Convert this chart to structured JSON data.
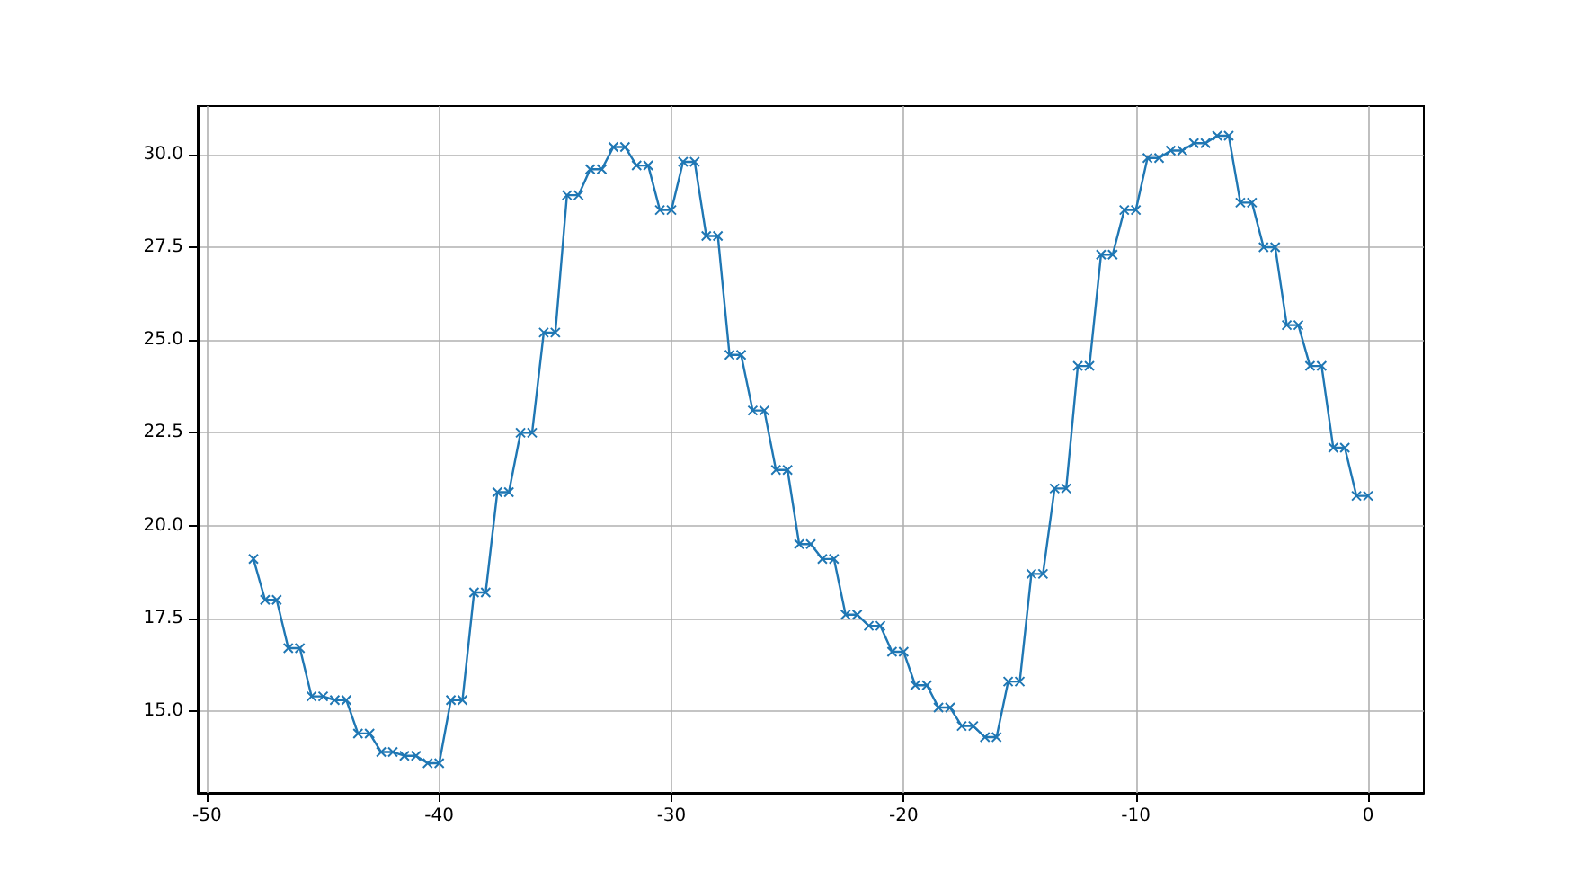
{
  "chart_data": {
    "type": "line",
    "marker": "cross",
    "grid": true,
    "x": [
      -48,
      -47.5,
      -47,
      -46.5,
      -46,
      -45.5,
      -45,
      -44.5,
      -44,
      -43.5,
      -43,
      -42.5,
      -42,
      -41.5,
      -41,
      -40.5,
      -40,
      -39.5,
      -39,
      -38.5,
      -38,
      -37.5,
      -37,
      -36.5,
      -36,
      -35.5,
      -35,
      -34.5,
      -34,
      -33.5,
      -33,
      -32.5,
      -32,
      -31.5,
      -31,
      -30.5,
      -30,
      -29.5,
      -29,
      -28.5,
      -28,
      -27.5,
      -27,
      -26.5,
      -26,
      -25.5,
      -25,
      -24.5,
      -24,
      -23.5,
      -23,
      -22.5,
      -22,
      -21.5,
      -21,
      -20.5,
      -20,
      -19.5,
      -19,
      -18.5,
      -18,
      -17.5,
      -17,
      -16.5,
      -16,
      -15.5,
      -15,
      -14.5,
      -14,
      -13.5,
      -13,
      -12.5,
      -12,
      -11.5,
      -11,
      -10.5,
      -10,
      -9.5,
      -9,
      -8.5,
      -8,
      -7.5,
      -7,
      -6.5,
      -6,
      -5.5,
      -5,
      -4.5,
      -4,
      -3.5,
      -3,
      -2.5,
      -2,
      -1.5,
      -1,
      -0.5,
      0
    ],
    "series": [
      {
        "color": "#1f77b4",
        "values": [
          19.1,
          18.0,
          18.0,
          16.7,
          16.7,
          15.4,
          15.4,
          15.3,
          15.3,
          14.4,
          14.4,
          13.9,
          13.9,
          13.8,
          13.8,
          13.6,
          13.6,
          15.3,
          15.3,
          18.2,
          18.2,
          20.9,
          20.9,
          22.5,
          22.5,
          25.2,
          25.2,
          28.9,
          28.9,
          29.6,
          29.6,
          30.2,
          30.2,
          29.7,
          29.7,
          28.5,
          28.5,
          29.8,
          29.8,
          27.8,
          27.8,
          24.6,
          24.6,
          23.1,
          23.1,
          21.5,
          21.5,
          19.5,
          19.5,
          19.1,
          19.1,
          17.6,
          17.6,
          17.3,
          17.3,
          16.6,
          16.6,
          15.7,
          15.7,
          15.1,
          15.1,
          14.6,
          14.6,
          14.3,
          14.3,
          15.8,
          15.8,
          18.7,
          18.7,
          21.0,
          21.0,
          24.3,
          24.3,
          27.3,
          27.3,
          28.5,
          28.5,
          29.9,
          29.9,
          30.1,
          30.1,
          30.3,
          30.3,
          30.5,
          30.5,
          28.7,
          28.7,
          27.5,
          27.5,
          25.4,
          25.4,
          24.3,
          24.3,
          22.1,
          22.1,
          20.8,
          20.8
        ]
      }
    ],
    "xlim": [
      -50.4,
      2.4
    ],
    "xticks": [
      -50,
      -40,
      -30,
      -20,
      -10,
      0
    ],
    "ylim": [
      12.8,
      31.3
    ],
    "yticks": [
      {
        "value": 15,
        "label": "15.0"
      },
      17.5,
      {
        "value": 20,
        "label": "20.0"
      },
      22.5,
      {
        "value": 25,
        "label": "25.0"
      },
      27.5,
      {
        "value": 30,
        "label": "30.0"
      }
    ]
  }
}
